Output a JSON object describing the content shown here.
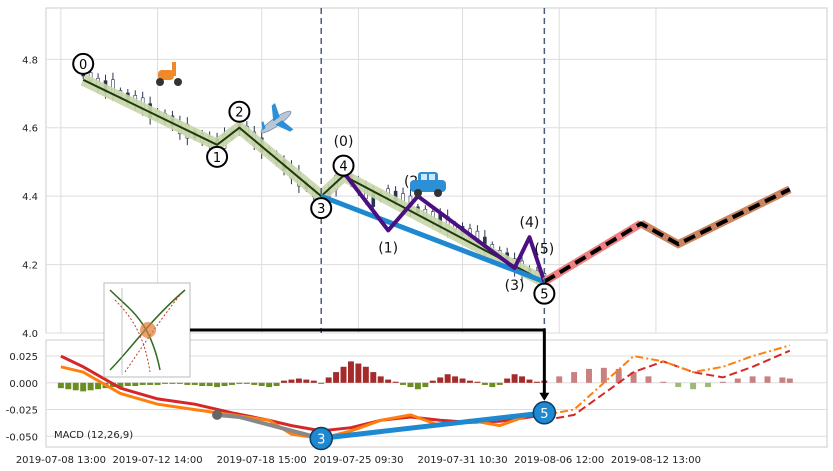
{
  "chart_data": {
    "type": "line",
    "title": "",
    "price_panel": {
      "ylim": [
        4.0,
        4.95
      ],
      "yticks": [
        4.0,
        4.2,
        4.4,
        4.6,
        4.8
      ],
      "ytick_labels": [
        "4.0",
        "4.2",
        "4.4",
        "4.6",
        "4.8"
      ],
      "grid": true,
      "price_series": [
        [
          0,
          4.76
        ],
        [
          1,
          4.75
        ],
        [
          2,
          4.73
        ],
        [
          3,
          4.72
        ],
        [
          4,
          4.72
        ],
        [
          5,
          4.7
        ],
        [
          6,
          4.69
        ],
        [
          7,
          4.68
        ],
        [
          8,
          4.67
        ],
        [
          9,
          4.65
        ],
        [
          10,
          4.64
        ],
        [
          11,
          4.63
        ],
        [
          12,
          4.62
        ],
        [
          13,
          4.6
        ],
        [
          14,
          4.59
        ],
        [
          15,
          4.58
        ],
        [
          16,
          4.57
        ],
        [
          17,
          4.56
        ],
        [
          18,
          4.55
        ],
        [
          19,
          4.56
        ],
        [
          20,
          4.58
        ],
        [
          21,
          4.6
        ],
        [
          22,
          4.59
        ],
        [
          23,
          4.57
        ],
        [
          24,
          4.55
        ],
        [
          25,
          4.53
        ],
        [
          26,
          4.51
        ],
        [
          27,
          4.49
        ],
        [
          28,
          4.47
        ],
        [
          29,
          4.45
        ],
        [
          30,
          4.43
        ],
        [
          31,
          4.41
        ],
        [
          32,
          4.39
        ],
        [
          33,
          4.4
        ],
        [
          34,
          4.44
        ],
        [
          35,
          4.47
        ],
        [
          36,
          4.45
        ],
        [
          37,
          4.43
        ],
        [
          38,
          4.41
        ],
        [
          39,
          4.39
        ],
        [
          40,
          4.4
        ],
        [
          41,
          4.41
        ],
        [
          42,
          4.4
        ],
        [
          43,
          4.39
        ],
        [
          44,
          4.38
        ],
        [
          45,
          4.36
        ],
        [
          46,
          4.35
        ],
        [
          47,
          4.34
        ],
        [
          48,
          4.33
        ],
        [
          49,
          4.32
        ],
        [
          50,
          4.31
        ],
        [
          51,
          4.3
        ],
        [
          52,
          4.29
        ],
        [
          53,
          4.28
        ],
        [
          54,
          4.26
        ],
        [
          55,
          4.25
        ],
        [
          56,
          4.23
        ],
        [
          57,
          4.22
        ],
        [
          58,
          4.2
        ],
        [
          59,
          4.19
        ],
        [
          60,
          4.18
        ],
        [
          61,
          4.17
        ],
        [
          62,
          4.16
        ]
      ],
      "wave_points": [
        {
          "label": "0",
          "x": 0,
          "y": 4.74
        },
        {
          "label": "1",
          "x": 18,
          "y": 4.55
        },
        {
          "label": "2",
          "x": 21,
          "y": 4.6
        },
        {
          "label": "3",
          "x": 32,
          "y": 4.4
        },
        {
          "label": "4",
          "x": 35,
          "y": 4.46
        },
        {
          "label": "5",
          "x": 62,
          "y": 4.15
        }
      ],
      "subwave_points": [
        {
          "label": "(0)",
          "x": 35,
          "y": 4.47
        },
        {
          "label": "(1)",
          "x": 41,
          "y": 4.3
        },
        {
          "label": "(2)",
          "x": 45,
          "y": 4.4
        },
        {
          "label": "(3)",
          "x": 58,
          "y": 4.19
        },
        {
          "label": "(4)",
          "x": 60,
          "y": 4.28
        },
        {
          "label": "(5)",
          "x": 62,
          "y": 4.15
        }
      ],
      "projection_points": [
        {
          "x": 62,
          "y": 4.15
        },
        {
          "x": 75,
          "y": 4.32
        },
        {
          "x": 80,
          "y": 4.26
        },
        {
          "x": 95,
          "y": 4.42
        }
      ],
      "blue_line": [
        [
          32,
          4.4
        ],
        [
          62,
          4.15
        ]
      ],
      "vertical_markers": [
        32,
        62
      ]
    },
    "macd_panel": {
      "label": "MACD (12,26,9)",
      "ylim": [
        -0.06,
        0.04
      ],
      "yticks": [
        -0.05,
        -0.025,
        0.0,
        0.025
      ],
      "ytick_labels": [
        "-0.050",
        "-0.025",
        "0.000",
        "0.025"
      ],
      "orange_line": [
        [
          -3,
          0.015
        ],
        [
          0,
          0.01
        ],
        [
          5,
          -0.01
        ],
        [
          10,
          -0.02
        ],
        [
          15,
          -0.025
        ],
        [
          20,
          -0.03
        ],
        [
          25,
          -0.035
        ],
        [
          28,
          -0.048
        ],
        [
          32,
          -0.052
        ],
        [
          36,
          -0.045
        ],
        [
          40,
          -0.035
        ],
        [
          44,
          -0.03
        ],
        [
          48,
          -0.04
        ],
        [
          52,
          -0.035
        ],
        [
          56,
          -0.04
        ],
        [
          60,
          -0.03
        ],
        [
          62,
          -0.028
        ]
      ],
      "red_line": [
        [
          -3,
          0.025
        ],
        [
          0,
          0.015
        ],
        [
          5,
          -0.005
        ],
        [
          10,
          -0.015
        ],
        [
          15,
          -0.02
        ],
        [
          20,
          -0.028
        ],
        [
          25,
          -0.035
        ],
        [
          28,
          -0.04
        ],
        [
          32,
          -0.045
        ],
        [
          36,
          -0.042
        ],
        [
          40,
          -0.035
        ],
        [
          44,
          -0.032
        ],
        [
          48,
          -0.035
        ],
        [
          52,
          -0.037
        ],
        [
          56,
          -0.036
        ],
        [
          60,
          -0.032
        ],
        [
          62,
          -0.03
        ]
      ],
      "proj_orange": [
        [
          62,
          -0.03
        ],
        [
          66,
          -0.025
        ],
        [
          70,
          0.0
        ],
        [
          74,
          0.025
        ],
        [
          78,
          0.02
        ],
        [
          82,
          0.01
        ],
        [
          86,
          0.015
        ],
        [
          90,
          0.025
        ],
        [
          95,
          0.035
        ]
      ],
      "proj_red": [
        [
          62,
          -0.035
        ],
        [
          66,
          -0.03
        ],
        [
          70,
          -0.01
        ],
        [
          74,
          0.01
        ],
        [
          78,
          0.02
        ],
        [
          82,
          0.01
        ],
        [
          86,
          0.005
        ],
        [
          90,
          0.015
        ],
        [
          95,
          0.03
        ]
      ],
      "grey_line": [
        [
          18,
          -0.03
        ],
        [
          21,
          -0.032
        ],
        [
          32,
          -0.052
        ]
      ],
      "blue_line": [
        [
          32,
          -0.052
        ],
        [
          62,
          -0.028
        ]
      ],
      "macd_points": [
        {
          "label": "3",
          "x": 32,
          "y": -0.052
        },
        {
          "label": "5",
          "x": 62,
          "y": -0.028
        }
      ],
      "histogram": [
        [
          -3,
          -0.005
        ],
        [
          -2,
          -0.006
        ],
        [
          -1,
          -0.007
        ],
        [
          0,
          -0.008
        ],
        [
          1,
          -0.007
        ],
        [
          2,
          -0.006
        ],
        [
          3,
          -0.005
        ],
        [
          4,
          -0.004
        ],
        [
          5,
          -0.004
        ],
        [
          6,
          -0.003
        ],
        [
          7,
          -0.003
        ],
        [
          8,
          -0.002
        ],
        [
          9,
          -0.002
        ],
        [
          10,
          -0.002
        ],
        [
          11,
          -0.001
        ],
        [
          12,
          -0.001
        ],
        [
          13,
          -0.001
        ],
        [
          14,
          -0.002
        ],
        [
          15,
          -0.002
        ],
        [
          16,
          -0.003
        ],
        [
          17,
          -0.003
        ],
        [
          18,
          -0.004
        ],
        [
          19,
          -0.003
        ],
        [
          20,
          -0.002
        ],
        [
          21,
          -0.001
        ],
        [
          22,
          -0.001
        ],
        [
          23,
          -0.002
        ],
        [
          24,
          -0.003
        ],
        [
          25,
          -0.004
        ],
        [
          26,
          -0.003
        ],
        [
          27,
          0.002
        ],
        [
          28,
          0.003
        ],
        [
          29,
          0.004
        ],
        [
          30,
          0.003
        ],
        [
          31,
          0.002
        ],
        [
          32,
          -0.001
        ],
        [
          33,
          0.005
        ],
        [
          34,
          0.01
        ],
        [
          35,
          0.015
        ],
        [
          36,
          0.02
        ],
        [
          37,
          0.018
        ],
        [
          38,
          0.015
        ],
        [
          39,
          0.01
        ],
        [
          40,
          0.006
        ],
        [
          41,
          0.003
        ],
        [
          42,
          0.001
        ],
        [
          43,
          -0.002
        ],
        [
          44,
          -0.004
        ],
        [
          45,
          -0.006
        ],
        [
          46,
          -0.004
        ],
        [
          47,
          0.002
        ],
        [
          48,
          0.005
        ],
        [
          49,
          0.008
        ],
        [
          50,
          0.006
        ],
        [
          51,
          0.004
        ],
        [
          52,
          0.002
        ],
        [
          53,
          0.001
        ],
        [
          54,
          -0.002
        ],
        [
          55,
          -0.004
        ],
        [
          56,
          -0.002
        ],
        [
          57,
          0.004
        ],
        [
          58,
          0.008
        ],
        [
          59,
          0.006
        ],
        [
          60,
          0.003
        ],
        [
          61,
          0.001
        ],
        [
          62,
          0.002
        ],
        [
          64,
          0.006
        ],
        [
          66,
          0.01
        ],
        [
          68,
          0.013
        ],
        [
          70,
          0.014
        ],
        [
          72,
          0.013
        ],
        [
          74,
          0.01
        ],
        [
          76,
          0.006
        ],
        [
          78,
          0.001
        ],
        [
          80,
          -0.004
        ],
        [
          82,
          -0.006
        ],
        [
          84,
          -0.004
        ],
        [
          86,
          0.001
        ],
        [
          88,
          0.004
        ],
        [
          90,
          0.006
        ],
        [
          92,
          0.006
        ],
        [
          94,
          0.005
        ],
        [
          95,
          0.004
        ]
      ]
    },
    "x_axis": {
      "xlim": [
        -5,
        100
      ],
      "tick_positions": [
        -3,
        10,
        24,
        37,
        51,
        64,
        77
      ],
      "tick_labels": [
        "2019-07-08 13:00",
        "2019-07-12 14:00",
        "2019-07-18 15:00",
        "2019-07-25 09:30",
        "2019-07-31 10:30",
        "2019-08-06 12:00",
        "2019-08-12 13:00"
      ]
    },
    "icons": [
      "scooter-icon",
      "airplane-icon",
      "car-icon"
    ],
    "colors": {
      "wave": "#1f3a0f",
      "wave_band": "#c8d6a8",
      "subwave": "#4b0f82",
      "trend_blue": "#1e88d0",
      "projection_bg": "#f08080",
      "projection_bg2": "#cd8561",
      "projection_dash": "#000000",
      "macd_orange": "#ff7f0e",
      "macd_red": "#d62728",
      "hist_green": "#6b8e23",
      "hist_red": "#a52a2a",
      "marker_line": "#4a5d7a"
    }
  }
}
